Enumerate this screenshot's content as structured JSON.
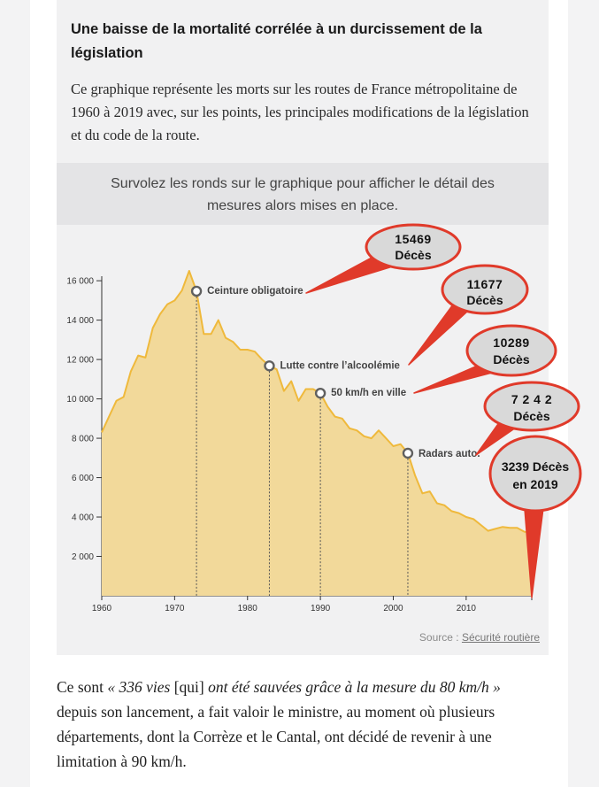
{
  "article": {
    "heading": "Une baisse de la mortalité corrélée à un durcissement de la législation",
    "intro": "Ce graphique représente les morts sur les routes de France métropolitaine de 1960 à 2019 avec, sur les points, les principales modifications de la législation et du code de la route.",
    "hint": "Survolez les ronds sur le graphique pour afficher le détail des mesures alors mises en place.",
    "source_label": "Source :",
    "source_link": "Sécurité routière",
    "outro": {
      "q1": "« 336 vies ",
      "q2": "[qui] ",
      "q3": "ont été sauvées grâce à la mesure du 80 km/h »",
      "rest": " depuis son lancement, a fait valoir le ministre, au moment où plusieurs départements, dont la Corrèze et le Cantal, ont décidé de revenir à une limitation à 90 km/h."
    }
  },
  "colors": {
    "area_fill": "#f2d99a",
    "area_stroke": "#efb93c",
    "callout_fill": "#d9d9d9",
    "callout_stroke": "#e03a2a",
    "marker_stroke": "#606060"
  },
  "chart_data": {
    "type": "area",
    "title": "",
    "xlabel": "",
    "ylabel": "",
    "xlim": [
      1960,
      2019
    ],
    "ylim": [
      0,
      16500
    ],
    "x_ticks": [
      1960,
      1970,
      1980,
      1990,
      2000,
      2010
    ],
    "y_ticks": [
      2000,
      4000,
      6000,
      8000,
      10000,
      12000,
      14000,
      16000
    ],
    "y_tick_labels": [
      "2 000",
      "4 000",
      "6 000",
      "8 000",
      "10 000",
      "12 000",
      "14 000",
      "16 000"
    ],
    "x": [
      1960,
      1961,
      1962,
      1963,
      1964,
      1965,
      1966,
      1967,
      1968,
      1969,
      1970,
      1971,
      1972,
      1973,
      1974,
      1975,
      1976,
      1977,
      1978,
      1979,
      1980,
      1981,
      1982,
      1983,
      1984,
      1985,
      1986,
      1987,
      1988,
      1989,
      1990,
      1991,
      1992,
      1993,
      1994,
      1995,
      1996,
      1997,
      1998,
      1999,
      2000,
      2001,
      2002,
      2003,
      2004,
      2005,
      2006,
      2007,
      2008,
      2009,
      2010,
      2011,
      2012,
      2013,
      2014,
      2015,
      2016,
      2017,
      2018,
      2019
    ],
    "y": [
      8300,
      9100,
      9900,
      10100,
      11400,
      12200,
      12100,
      13600,
      14300,
      14800,
      15000,
      15500,
      16500,
      15469,
      13300,
      13300,
      14000,
      13100,
      12900,
      12500,
      12500,
      12400,
      12000,
      11677,
      11500,
      10400,
      10900,
      9900,
      10500,
      10500,
      10289,
      9600,
      9100,
      9000,
      8500,
      8400,
      8100,
      8000,
      8400,
      8000,
      7600,
      7700,
      7242,
      6100,
      5200,
      5300,
      4700,
      4600,
      4300,
      4200,
      4000,
      3900,
      3600,
      3300,
      3400,
      3500,
      3450,
      3450,
      3250,
      3239
    ],
    "markers": [
      {
        "year": 1973,
        "value": 15469,
        "label": "Ceinture obligatoire"
      },
      {
        "year": 1983,
        "value": 11677,
        "label": "Lutte contre l’alcoolémie"
      },
      {
        "year": 1990,
        "value": 10289,
        "label": "50 km/h en ville"
      },
      {
        "year": 2002,
        "value": 7242,
        "label": "Radars auto."
      }
    ],
    "callouts": [
      {
        "line1": "15469",
        "line2": "Décès"
      },
      {
        "line1": "11677",
        "line2": "Décès"
      },
      {
        "line1": "10289",
        "line2": "Décès"
      },
      {
        "line1": "7 2 4 2",
        "line2": "Décès"
      },
      {
        "line1": "3239 Décès",
        "line2": "en 2019"
      }
    ]
  }
}
